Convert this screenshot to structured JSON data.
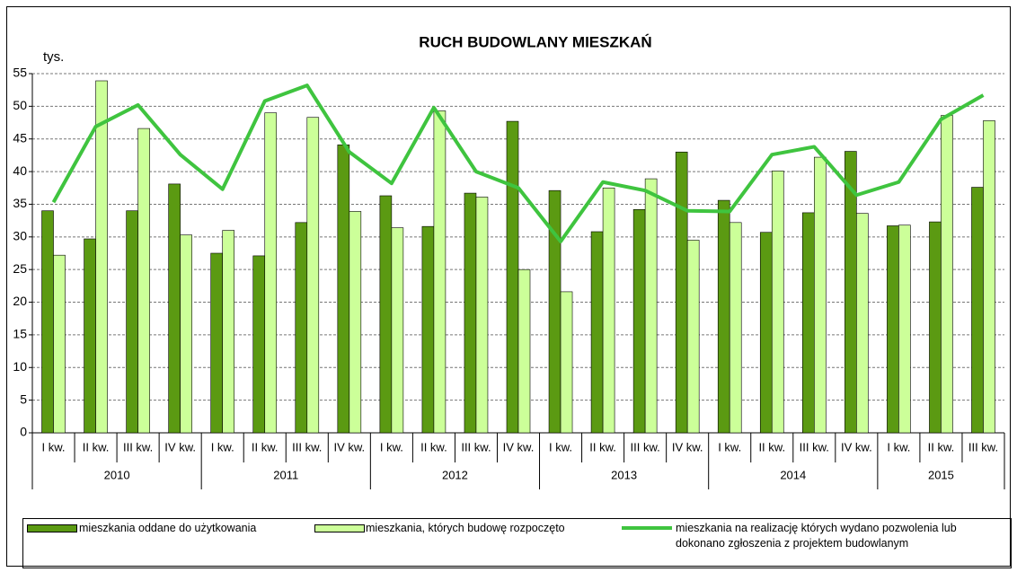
{
  "chart_data": {
    "type": "bar",
    "title": "RUCH BUDOWLANY MIESZKAŃ",
    "y_label": "tys.",
    "groups": [
      {
        "label": "2010",
        "categories": [
          "I kw.",
          "II kw.",
          "III kw.",
          "IV kw."
        ]
      },
      {
        "label": "2011",
        "categories": [
          "I kw.",
          "II kw.",
          "III kw.",
          "IV kw."
        ]
      },
      {
        "label": "2012",
        "categories": [
          "I kw.",
          "II kw.",
          "III kw.",
          "IV kw."
        ]
      },
      {
        "label": "2013",
        "categories": [
          "I kw.",
          "II kw.",
          "III kw.",
          "IV kw."
        ]
      },
      {
        "label": "2014",
        "categories": [
          "I kw.",
          "II kw.",
          "III kw.",
          "IV kw."
        ]
      },
      {
        "label": "2015",
        "categories": [
          "I kw.",
          "II kw.",
          "III kw."
        ]
      }
    ],
    "series": [
      {
        "name": "mieszkania oddane do użytkowania",
        "type": "bar",
        "color": "#5b9a12",
        "values": [
          34.0,
          29.7,
          34.0,
          38.1,
          27.5,
          27.1,
          32.2,
          44.1,
          36.3,
          31.6,
          36.7,
          47.7,
          37.1,
          30.8,
          34.2,
          43.0,
          35.6,
          30.7,
          33.7,
          43.1,
          31.7,
          32.3,
          37.6
        ]
      },
      {
        "name": "mieszkania, których budowę rozpoczęto",
        "type": "bar",
        "color": "#ccff99",
        "values": [
          27.2,
          53.9,
          46.6,
          30.3,
          31.0,
          49.0,
          48.3,
          33.9,
          31.4,
          49.3,
          36.1,
          25.0,
          21.6,
          37.5,
          38.9,
          29.5,
          32.2,
          40.1,
          42.2,
          33.6,
          31.8,
          48.6,
          47.8
        ]
      },
      {
        "name": "mieszkania na realizację których wydano pozwolenia lub dokonano zgłoszenia z projektem budowlanym",
        "type": "line",
        "color": "#3fc43f",
        "values": [
          35.3,
          46.9,
          50.2,
          42.6,
          37.3,
          50.8,
          53.2,
          43.0,
          38.2,
          49.8,
          40.0,
          37.5,
          29.3,
          38.4,
          37.1,
          34.0,
          33.9,
          42.6,
          43.8,
          36.4,
          38.4,
          48.0,
          51.7
        ]
      }
    ],
    "ylim": [
      0,
      55
    ],
    "yticks": [
      0,
      5,
      10,
      15,
      20,
      25,
      30,
      35,
      40,
      45,
      50,
      55
    ],
    "grid": true
  }
}
